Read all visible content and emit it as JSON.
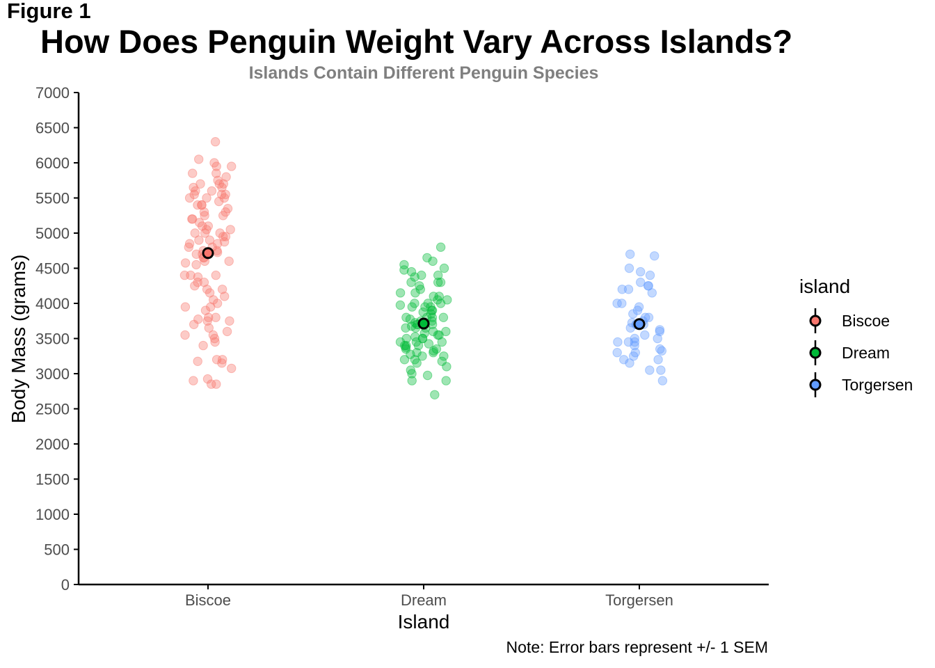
{
  "figure_label": "Figure 1",
  "note": "Note: Error bars represent +/- 1 SEM",
  "chart_data": {
    "type": "scatter",
    "title": "How Does Penguin Weight Vary Across Islands?",
    "subtitle": "Islands Contain Different Penguin Species",
    "xlabel": "Island",
    "ylabel": "Body Mass (grams)",
    "categories": [
      "Biscoe",
      "Dream",
      "Torgersen"
    ],
    "ylim": [
      0,
      7000
    ],
    "yticks": [
      0,
      500,
      1000,
      1500,
      2000,
      2500,
      3000,
      3500,
      4000,
      4500,
      5000,
      5500,
      6000,
      6500,
      7000
    ],
    "grid": false,
    "legend": {
      "title": "island",
      "placement": "right",
      "entries": [
        "Biscoe",
        "Dream",
        "Torgersen"
      ]
    },
    "colors": {
      "Biscoe": "#F8766D",
      "Dream": "#00BA38",
      "Torgersen": "#619CFF"
    },
    "series": [
      {
        "name": "Biscoe",
        "mean": 4716,
        "values": [
          6300,
          6050,
          6000,
          5950,
          5950,
          5850,
          5850,
          5800,
          5750,
          5700,
          5700,
          5700,
          5650,
          5650,
          5600,
          5600,
          5550,
          5550,
          5550,
          5500,
          5500,
          5500,
          5450,
          5400,
          5400,
          5400,
          5350,
          5300,
          5300,
          5250,
          5250,
          5200,
          5200,
          5150,
          5100,
          5100,
          5050,
          5050,
          5000,
          5000,
          5000,
          4950,
          4950,
          4900,
          4900,
          4875,
          4850,
          4850,
          4800,
          4800,
          4750,
          4750,
          4725,
          4700,
          4700,
          4650,
          4650,
          4600,
          4600,
          4575,
          4550,
          4400,
          4400,
          4400,
          4375,
          4300,
          4300,
          4250,
          4200,
          4200,
          4150,
          4100,
          4050,
          4000,
          3950,
          3950,
          3900,
          3800,
          3800,
          3775,
          3750,
          3750,
          3700,
          3650,
          3600,
          3550,
          3550,
          3500,
          3450,
          3400,
          3200,
          3200,
          3175,
          3150,
          3075,
          2925,
          2900,
          2850,
          2850
        ]
      },
      {
        "name": "Dream",
        "mean": 3713,
        "values": [
          4800,
          4650,
          4600,
          4550,
          4500,
          4475,
          4450,
          4400,
          4400,
          4375,
          4300,
          4300,
          4300,
          4250,
          4200,
          4150,
          4150,
          4100,
          4100,
          4050,
          4050,
          4000,
          4000,
          4000,
          3975,
          3950,
          3950,
          3950,
          3900,
          3900,
          3875,
          3850,
          3800,
          3800,
          3800,
          3800,
          3775,
          3750,
          3750,
          3725,
          3700,
          3700,
          3700,
          3675,
          3650,
          3650,
          3650,
          3600,
          3600,
          3575,
          3550,
          3550,
          3525,
          3500,
          3500,
          3500,
          3450,
          3450,
          3450,
          3425,
          3400,
          3400,
          3400,
          3375,
          3350,
          3350,
          3325,
          3300,
          3300,
          3275,
          3250,
          3250,
          3200,
          3200,
          3175,
          3150,
          3100,
          3050,
          3000,
          2975,
          2900,
          2900,
          2700
        ]
      },
      {
        "name": "Torgersen",
        "mean": 3706,
        "values": [
          4700,
          4675,
          4500,
          4450,
          4400,
          4300,
          4250,
          4250,
          4200,
          4200,
          4150,
          4000,
          4000,
          3950,
          3900,
          3850,
          3800,
          3800,
          3750,
          3725,
          3700,
          3700,
          3700,
          3650,
          3625,
          3600,
          3550,
          3500,
          3500,
          3450,
          3450,
          3450,
          3400,
          3350,
          3325,
          3300,
          3300,
          3250,
          3200,
          3200,
          3150,
          3050,
          3050,
          2900
        ]
      }
    ]
  }
}
